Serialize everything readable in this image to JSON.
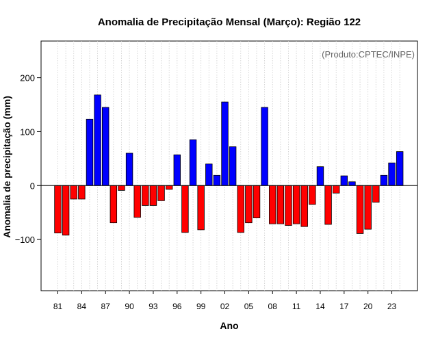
{
  "chart_data": {
    "type": "bar",
    "title": "Anomalia de Precipitação Mensal (Março): Região 122",
    "xlabel": "Ano",
    "ylabel": "Anomalia de precipitação (mm)",
    "annotation": "(Produto:CPTEC/INPE)",
    "ylim": [
      -195,
      268
    ],
    "yticks": [
      -100,
      0,
      100,
      200
    ],
    "ytick_labels": [
      "−100",
      "0",
      "100",
      "200"
    ],
    "xtick_years": [
      1981,
      1984,
      1987,
      1990,
      1993,
      1996,
      1999,
      2002,
      2005,
      2008,
      2011,
      2014,
      2017,
      2020,
      2023
    ],
    "xtick_labels": [
      "81",
      "84",
      "87",
      "90",
      "93",
      "96",
      "99",
      "02",
      "05",
      "08",
      "11",
      "14",
      "17",
      "20",
      "23"
    ],
    "positive_color": "#0000ff",
    "negative_color": "#ff0000",
    "grid": true,
    "categories": [
      1981,
      1982,
      1983,
      1984,
      1985,
      1986,
      1987,
      1988,
      1989,
      1990,
      1991,
      1992,
      1993,
      1994,
      1995,
      1996,
      1997,
      1998,
      1999,
      2000,
      2001,
      2002,
      2003,
      2004,
      2005,
      2006,
      2007,
      2008,
      2009,
      2010,
      2011,
      2012,
      2013,
      2014,
      2015,
      2016,
      2017,
      2018,
      2019,
      2020,
      2021,
      2022,
      2023,
      2024
    ],
    "values": [
      -88,
      -92,
      -25,
      -25,
      123,
      168,
      145,
      -69,
      -9,
      60,
      -59,
      -37,
      -37,
      -28,
      -7,
      57,
      -87,
      85,
      -82,
      40,
      19,
      155,
      72,
      -87,
      -69,
      -60,
      145,
      -71,
      -71,
      -74,
      -71,
      -76,
      -35,
      35,
      -72,
      -14,
      18,
      7,
      -89,
      -81,
      -31,
      19,
      42,
      63
    ]
  }
}
